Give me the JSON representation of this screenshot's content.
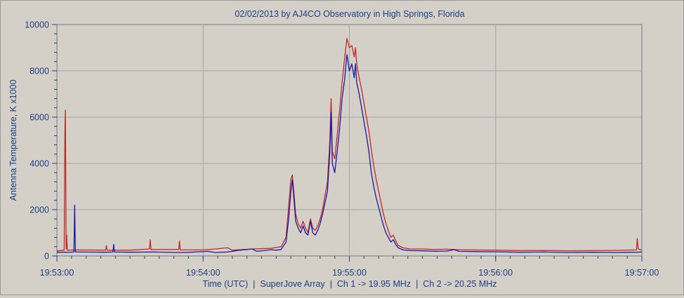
{
  "window": {
    "background": "#d4d0c8"
  },
  "chart_data": {
    "type": "line",
    "title": "02/02/2013  by  AJ4CO Observatory  in  High Springs, Florida",
    "xlabel": "Time (UTC)  |  SuperJove Array  |  Ch 1 -> 19.95 MHz  |  Ch 2 -> 20.25 MHz",
    "ylabel": "Antenna Temperature, K x1000",
    "x_ticks": [
      "19:53:00",
      "19:54:00",
      "19:55:00",
      "19:56:00",
      "19:57:00"
    ],
    "y_ticks": [
      "0",
      "2000",
      "4000",
      "6000",
      "8000",
      "10000"
    ],
    "ylim": [
      0,
      10000
    ],
    "xlim_seconds": [
      0,
      240
    ],
    "grid": true,
    "colors": {
      "plot_bg": "#d4d0c8",
      "grid": "#a4a4a4",
      "text": "#1c3f84",
      "ch1": "#1a1aa0",
      "ch2": "#c02828"
    },
    "series": [
      {
        "color": "#1a1aa0",
        "points": [
          [
            0,
            160
          ],
          [
            3.5,
            160
          ],
          [
            4,
            155
          ],
          [
            7,
            170
          ],
          [
            7.3,
            2200
          ],
          [
            7.6,
            170
          ],
          [
            10,
            170
          ],
          [
            20,
            160
          ],
          [
            23,
            170
          ],
          [
            23.3,
            500
          ],
          [
            23.6,
            170
          ],
          [
            30,
            160
          ],
          [
            40,
            170
          ],
          [
            50,
            150
          ],
          [
            55,
            160
          ],
          [
            62,
            200
          ],
          [
            65,
            150
          ],
          [
            70,
            170
          ],
          [
            75,
            250
          ],
          [
            80,
            300
          ],
          [
            82,
            200
          ],
          [
            85,
            230
          ],
          [
            88,
            270
          ],
          [
            90,
            250
          ],
          [
            92,
            280
          ],
          [
            94,
            600
          ],
          [
            95,
            1500
          ],
          [
            96,
            2800
          ],
          [
            96.6,
            3300
          ],
          [
            97.2,
            2500
          ],
          [
            98,
            1500
          ],
          [
            99,
            1200
          ],
          [
            100,
            1000
          ],
          [
            101,
            1300
          ],
          [
            102,
            1000
          ],
          [
            103,
            900
          ],
          [
            104,
            1500
          ],
          [
            105,
            1000
          ],
          [
            106,
            900
          ],
          [
            107,
            1100
          ],
          [
            108,
            1400
          ],
          [
            109,
            1800
          ],
          [
            110,
            2300
          ],
          [
            111,
            2800
          ],
          [
            112,
            4500
          ],
          [
            112.5,
            6200
          ],
          [
            113,
            4000
          ],
          [
            114,
            3600
          ],
          [
            115,
            4500
          ],
          [
            116,
            5500
          ],
          [
            117,
            6800
          ],
          [
            118,
            7600
          ],
          [
            119,
            8700
          ],
          [
            120,
            8000
          ],
          [
            121,
            8300
          ],
          [
            122,
            7700
          ],
          [
            122.5,
            8300
          ],
          [
            123,
            7500
          ],
          [
            124,
            7000
          ],
          [
            125,
            6400
          ],
          [
            126,
            5800
          ],
          [
            127,
            5200
          ],
          [
            128,
            4500
          ],
          [
            129,
            3600
          ],
          [
            130,
            3000
          ],
          [
            131,
            2500
          ],
          [
            132,
            2100
          ],
          [
            133,
            1700
          ],
          [
            134,
            1300
          ],
          [
            135,
            1000
          ],
          [
            136,
            800
          ],
          [
            137,
            600
          ],
          [
            138,
            700
          ],
          [
            139,
            500
          ],
          [
            140,
            350
          ],
          [
            142,
            260
          ],
          [
            145,
            230
          ],
          [
            150,
            220
          ],
          [
            155,
            200
          ],
          [
            160,
            210
          ],
          [
            163,
            270
          ],
          [
            165,
            200
          ],
          [
            170,
            190
          ],
          [
            180,
            180
          ],
          [
            190,
            160
          ],
          [
            200,
            170
          ],
          [
            210,
            150
          ],
          [
            220,
            160
          ],
          [
            230,
            150
          ],
          [
            238,
            160
          ],
          [
            240,
            170
          ]
        ]
      },
      {
        "color": "#c02828",
        "points": [
          [
            0,
            220
          ],
          [
            3,
            250
          ],
          [
            3.3,
            5500
          ],
          [
            3.5,
            6300
          ],
          [
            3.8,
            300
          ],
          [
            4,
            900
          ],
          [
            4.3,
            250
          ],
          [
            8,
            260
          ],
          [
            20,
            250
          ],
          [
            20.3,
            450
          ],
          [
            20.6,
            250
          ],
          [
            30,
            250
          ],
          [
            38,
            300
          ],
          [
            38.3,
            700
          ],
          [
            38.6,
            280
          ],
          [
            50,
            280
          ],
          [
            50.3,
            650
          ],
          [
            50.6,
            260
          ],
          [
            60,
            260
          ],
          [
            65,
            300
          ],
          [
            70,
            350
          ],
          [
            72,
            250
          ],
          [
            80,
            300
          ],
          [
            88,
            330
          ],
          [
            92,
            400
          ],
          [
            94,
            800
          ],
          [
            95,
            2000
          ],
          [
            96,
            3300
          ],
          [
            96.6,
            3500
          ],
          [
            97.2,
            2800
          ],
          [
            98,
            1800
          ],
          [
            99,
            1400
          ],
          [
            100,
            1200
          ],
          [
            101,
            1500
          ],
          [
            102,
            1200
          ],
          [
            103,
            1000
          ],
          [
            104,
            1600
          ],
          [
            105,
            1200
          ],
          [
            106,
            1100
          ],
          [
            107,
            1300
          ],
          [
            108,
            1600
          ],
          [
            109,
            2000
          ],
          [
            110,
            2600
          ],
          [
            111,
            3200
          ],
          [
            112,
            5000
          ],
          [
            112.5,
            6800
          ],
          [
            113,
            4500
          ],
          [
            114,
            4200
          ],
          [
            115,
            5200
          ],
          [
            116,
            6300
          ],
          [
            117,
            7500
          ],
          [
            118,
            8500
          ],
          [
            119,
            9400
          ],
          [
            120,
            9000
          ],
          [
            121,
            9100
          ],
          [
            122,
            8600
          ],
          [
            122.5,
            9000
          ],
          [
            123,
            8300
          ],
          [
            124,
            7700
          ],
          [
            125,
            7200
          ],
          [
            126,
            6600
          ],
          [
            127,
            6000
          ],
          [
            128,
            5400
          ],
          [
            129,
            4600
          ],
          [
            130,
            3900
          ],
          [
            131,
            3300
          ],
          [
            132,
            2800
          ],
          [
            133,
            2300
          ],
          [
            134,
            1800
          ],
          [
            135,
            1400
          ],
          [
            136,
            1100
          ],
          [
            137,
            800
          ],
          [
            138,
            900
          ],
          [
            139,
            650
          ],
          [
            140,
            450
          ],
          [
            142,
            350
          ],
          [
            145,
            300
          ],
          [
            150,
            300
          ],
          [
            155,
            280
          ],
          [
            160,
            290
          ],
          [
            165,
            270
          ],
          [
            170,
            260
          ],
          [
            180,
            250
          ],
          [
            190,
            230
          ],
          [
            200,
            240
          ],
          [
            210,
            220
          ],
          [
            220,
            230
          ],
          [
            230,
            240
          ],
          [
            237.8,
            260
          ],
          [
            238.1,
            750
          ],
          [
            238.5,
            300
          ],
          [
            240,
            250
          ]
        ]
      }
    ]
  }
}
